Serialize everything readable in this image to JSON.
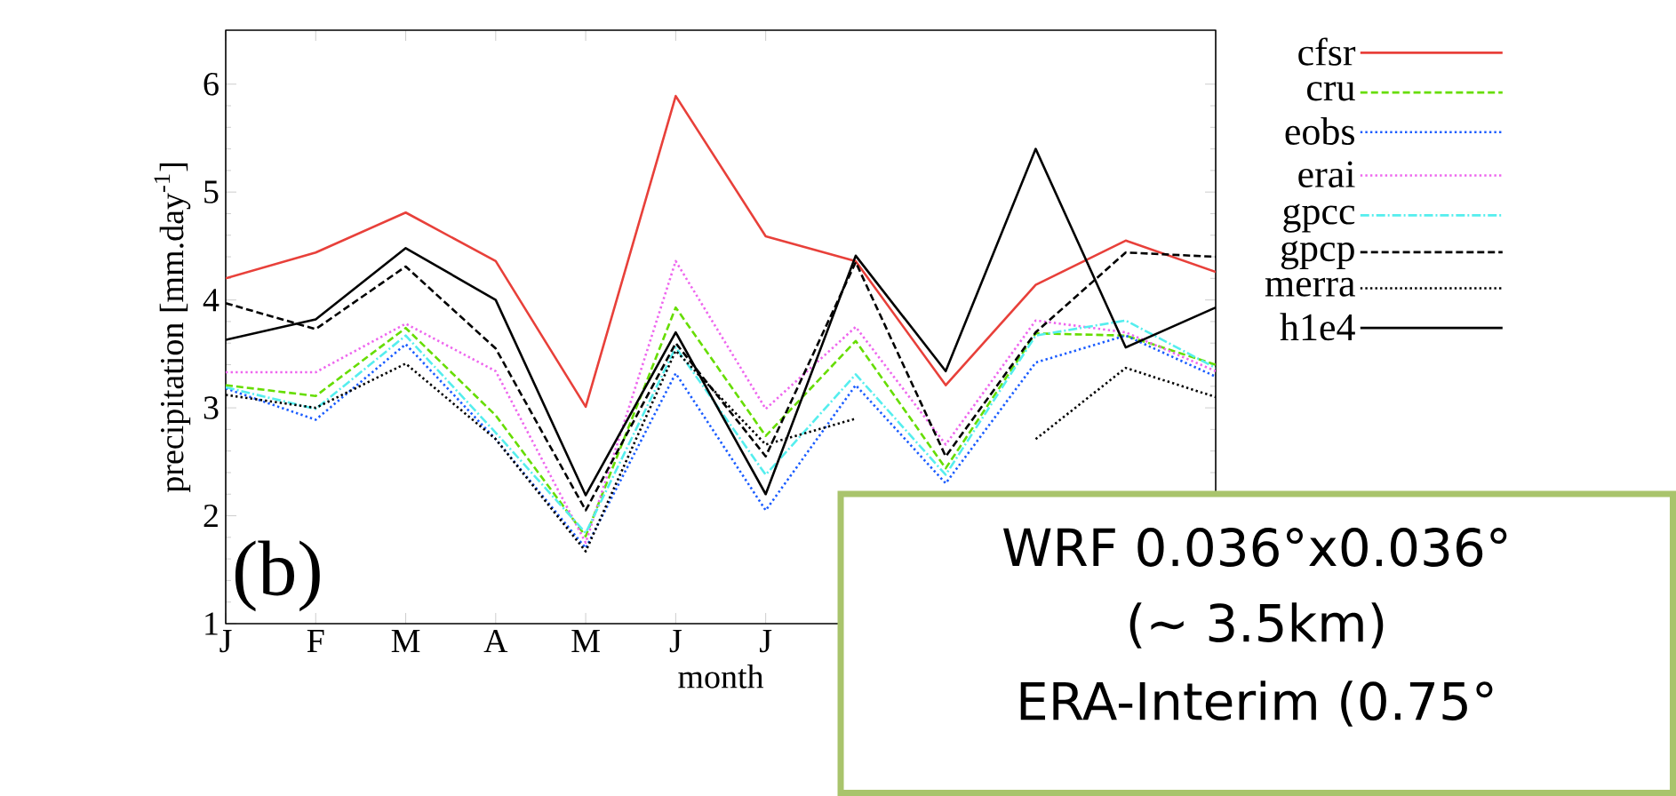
{
  "chart_data": {
    "type": "line",
    "xlabel": "month",
    "ylabel": "precipitation [mm.day$^{-1}$]",
    "categories": [
      "J",
      "F",
      "M",
      "A",
      "M",
      "J",
      "J",
      null,
      null,
      null,
      null,
      null
    ],
    "ylim": [
      1,
      6.5
    ],
    "yticks": [
      1,
      2,
      3,
      4,
      5,
      6
    ],
    "legend": "right",
    "grid": false,
    "marker": "none",
    "annotations": [
      "(b)",
      "WRF 0.036°x0.036°",
      "(~ 3.5km)",
      "ERA-Interim (0.75°"
    ],
    "series": [
      {
        "name": "cfsr",
        "color": "#e8403a",
        "line_style": "solid",
        "values": [
          4.2,
          4.44,
          4.81,
          4.36,
          3.01,
          5.89,
          4.59,
          4.36,
          3.21,
          4.14,
          4.55,
          4.26
        ]
      },
      {
        "name": "cru",
        "color": "#66dd00",
        "line_style": "dashed",
        "values": [
          3.21,
          3.11,
          3.74,
          2.93,
          1.81,
          3.93,
          2.74,
          3.62,
          2.44,
          3.69,
          3.67,
          3.4
        ]
      },
      {
        "name": "eobs",
        "color": "#1a5cff",
        "line_style": "dotted",
        "values": [
          3.18,
          2.89,
          3.59,
          2.71,
          1.7,
          3.32,
          2.05,
          3.21,
          2.3,
          3.42,
          3.67,
          3.29
        ]
      },
      {
        "name": "erai",
        "color": "#ee66ee",
        "line_style": "dotted",
        "values": [
          3.33,
          3.33,
          3.78,
          3.34,
          1.75,
          4.36,
          2.99,
          3.75,
          2.66,
          3.81,
          3.7,
          3.34
        ]
      },
      {
        "name": "gpcc",
        "color": "#55eeee",
        "line_style": "dashdot",
        "values": [
          3.19,
          2.99,
          3.67,
          2.77,
          1.84,
          3.56,
          2.38,
          3.31,
          2.38,
          3.67,
          3.81,
          3.37
        ]
      },
      {
        "name": "gpcp",
        "color": "#000000",
        "line_style": "dashed",
        "values": [
          3.97,
          3.73,
          4.31,
          3.55,
          2.05,
          3.6,
          2.55,
          4.35,
          2.55,
          3.7,
          4.44,
          4.4
        ]
      },
      {
        "name": "merra",
        "color": "#000000",
        "line_style": "dotted",
        "values": [
          3.12,
          3.0,
          3.41,
          2.71,
          1.67,
          3.53,
          2.66,
          2.9,
          null,
          2.71,
          3.37,
          3.1
        ]
      },
      {
        "name": "h1e4",
        "color": "#000000",
        "line_style": "solid",
        "values": [
          3.63,
          3.82,
          4.48,
          4.0,
          2.19,
          3.7,
          2.2,
          4.41,
          3.34,
          5.4,
          3.56,
          3.93
        ]
      }
    ]
  }
}
